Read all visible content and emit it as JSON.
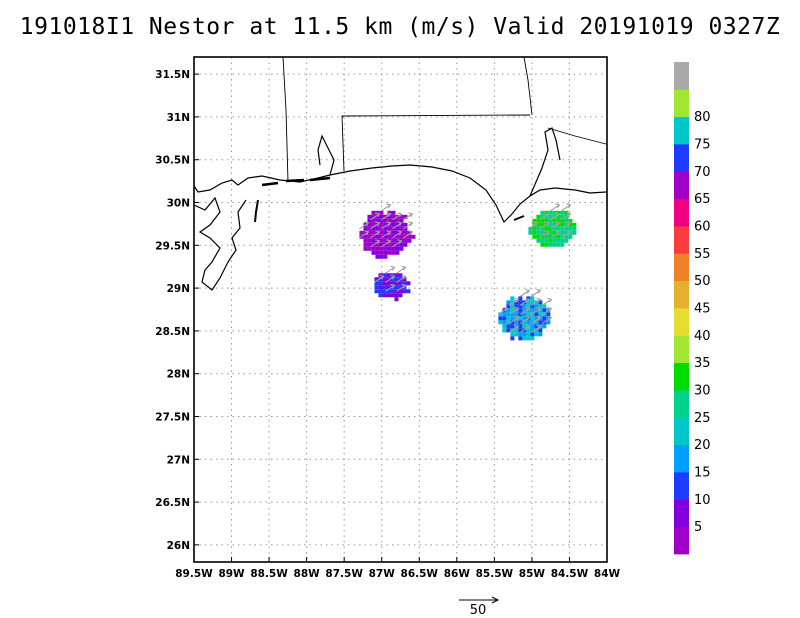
{
  "title": "191018I1 Nestor at 11.5 km (m/s) Valid 20191019 0327Z",
  "map": {
    "lon_range": [
      -89.5,
      -84.0
    ],
    "lat_range": [
      25.8,
      31.7
    ],
    "grid": true,
    "x_ticks": [
      {
        "lon": -89.5,
        "label": "89.5W"
      },
      {
        "lon": -89.0,
        "label": "89W"
      },
      {
        "lon": -88.5,
        "label": "88.5W"
      },
      {
        "lon": -88.0,
        "label": "88W"
      },
      {
        "lon": -87.5,
        "label": "87.5W"
      },
      {
        "lon": -87.0,
        "label": "87W"
      },
      {
        "lon": -86.5,
        "label": "86.5W"
      },
      {
        "lon": -86.0,
        "label": "86W"
      },
      {
        "lon": -85.5,
        "label": "85.5W"
      },
      {
        "lon": -85.0,
        "label": "85W"
      },
      {
        "lon": -84.5,
        "label": "84.5W"
      },
      {
        "lon": -84.0,
        "label": "84W"
      }
    ],
    "y_ticks": [
      {
        "lat": 31.5,
        "label": "31.5N"
      },
      {
        "lat": 31.0,
        "label": "31N"
      },
      {
        "lat": 30.5,
        "label": "30.5N"
      },
      {
        "lat": 30.0,
        "label": "30N"
      },
      {
        "lat": 29.5,
        "label": "29.5N"
      },
      {
        "lat": 29.0,
        "label": "29N"
      },
      {
        "lat": 28.5,
        "label": "28.5N"
      },
      {
        "lat": 28.0,
        "label": "28N"
      },
      {
        "lat": 27.5,
        "label": "27.5N"
      },
      {
        "lat": 27.0,
        "label": "27N"
      },
      {
        "lat": 26.5,
        "label": "26.5N"
      },
      {
        "lat": 26.0,
        "label": "26N"
      }
    ]
  },
  "colorbar": {
    "entries": [
      {
        "label": "",
        "color": "#a000c8"
      },
      {
        "label": "5",
        "color": "#8200dc"
      },
      {
        "label": "10",
        "color": "#1e3cff"
      },
      {
        "label": "15",
        "color": "#00a0ff"
      },
      {
        "label": "20",
        "color": "#00c8c8"
      },
      {
        "label": "25",
        "color": "#00d28c"
      },
      {
        "label": "30",
        "color": "#00dc00"
      },
      {
        "label": "35",
        "color": "#a0e632"
      },
      {
        "label": "40",
        "color": "#e6dc32"
      },
      {
        "label": "45",
        "color": "#e6af2d"
      },
      {
        "label": "50",
        "color": "#f08228"
      },
      {
        "label": "55",
        "color": "#fa3c3c"
      },
      {
        "label": "60",
        "color": "#f00082"
      },
      {
        "label": "65",
        "color": "#a000c8"
      },
      {
        "label": "70",
        "color": "#1e3cff"
      },
      {
        "label": "75",
        "color": "#00c8c8"
      },
      {
        "label": "80",
        "color": "#a0e632"
      },
      {
        "label": "",
        "color": "#aaaaaa"
      }
    ]
  },
  "wind_scale": {
    "label": "50"
  },
  "regions": [
    {
      "name": "precip-cluster-central-north",
      "lon": [
        -87.35,
        -86.6
      ],
      "lat": [
        29.35,
        29.95
      ],
      "colors": [
        "#8200dc",
        "#a000c8"
      ]
    },
    {
      "name": "precip-cluster-central-south",
      "lon": [
        -87.15,
        -86.65
      ],
      "lat": [
        28.88,
        29.22
      ],
      "colors": [
        "#1e3cff",
        "#8200dc"
      ]
    },
    {
      "name": "precip-cluster-east-north",
      "lon": [
        -85.1,
        -84.4
      ],
      "lat": [
        29.5,
        29.95
      ],
      "colors": [
        "#00dc00",
        "#00d28c"
      ]
    },
    {
      "name": "precip-cluster-east-south",
      "lon": [
        -85.5,
        -84.75
      ],
      "lat": [
        28.4,
        28.95
      ],
      "colors": [
        "#00c8c8",
        "#00a0ff",
        "#1e3cff"
      ]
    }
  ]
}
